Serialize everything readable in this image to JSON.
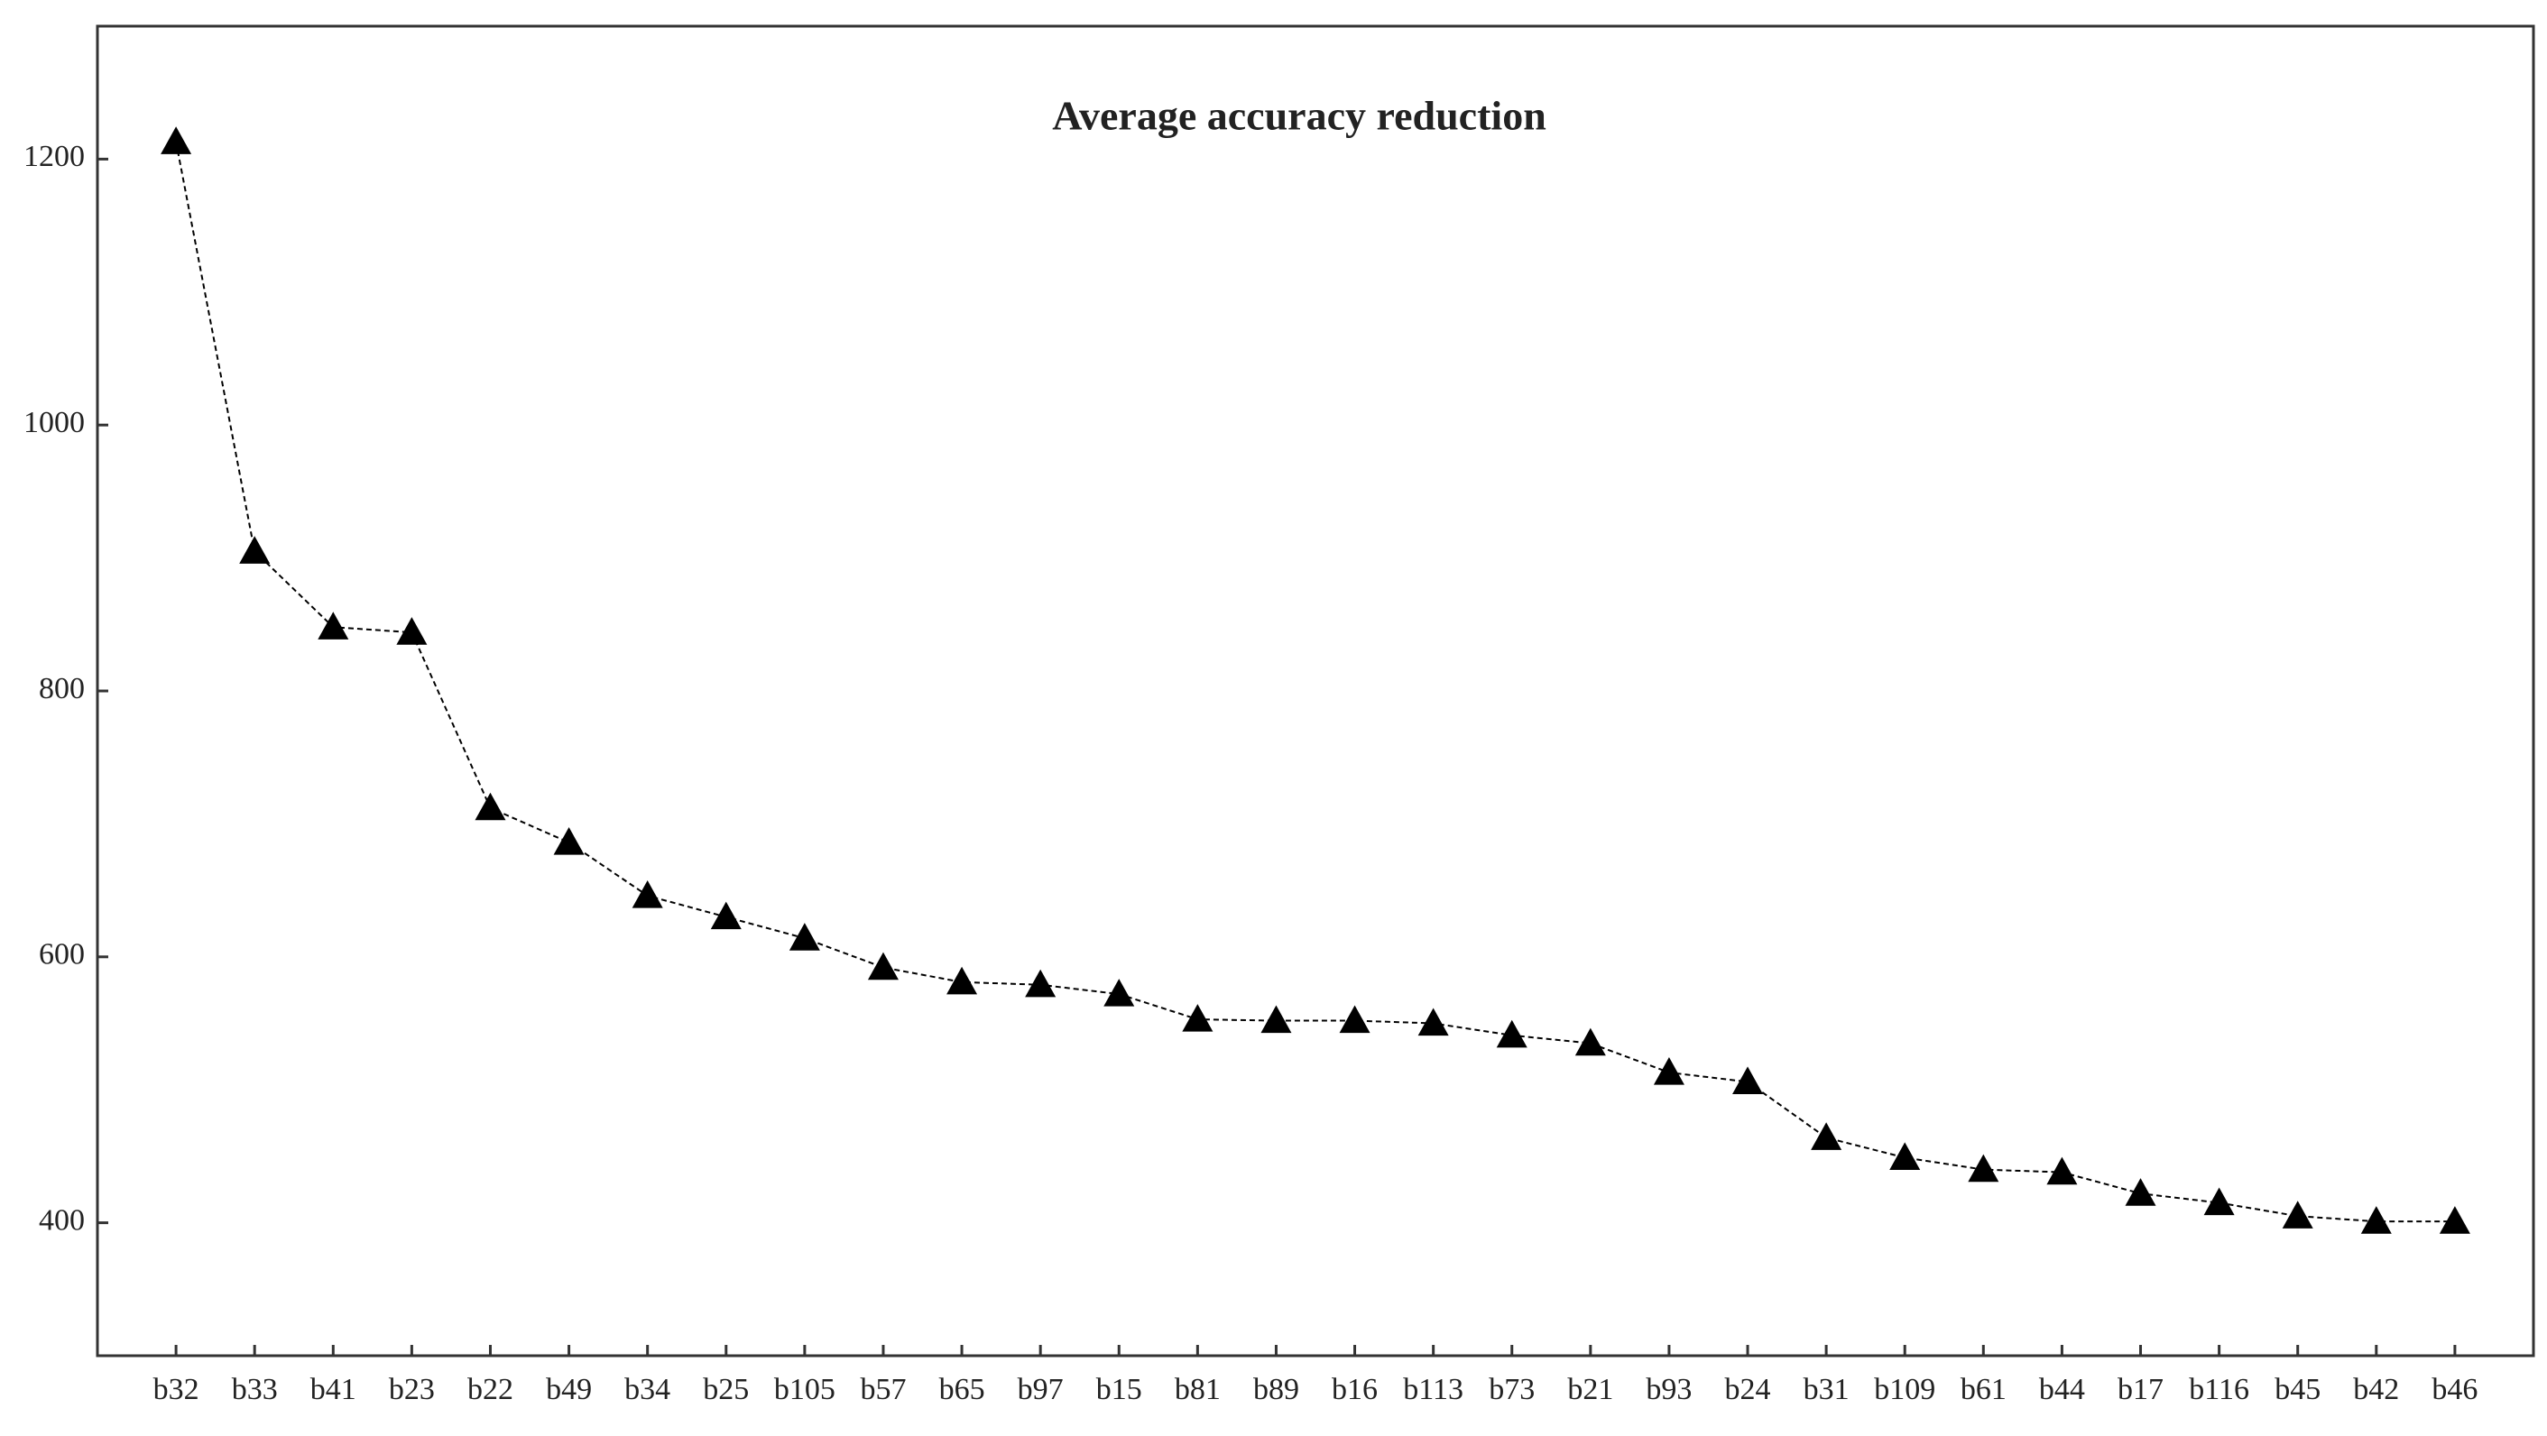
{
  "chart_data": {
    "type": "line",
    "title": "Average accuracy reduction",
    "categories": [
      "b32",
      "b33",
      "b41",
      "b23",
      "b22",
      "b49",
      "b34",
      "b25",
      "b105",
      "b57",
      "b65",
      "b97",
      "b15",
      "b81",
      "b89",
      "b16",
      "b113",
      "b73",
      "b21",
      "b93",
      "b24",
      "b31",
      "b109",
      "b61",
      "b44",
      "b17",
      "b116",
      "b45",
      "b42",
      "b46"
    ],
    "values": [
      1213,
      905,
      848,
      844,
      712,
      686,
      646,
      630,
      614,
      592,
      581,
      579,
      572,
      553,
      552,
      552,
      550,
      541,
      535,
      513,
      506,
      464,
      449,
      440,
      438,
      422,
      415,
      405,
      401,
      401
    ],
    "color": "#000000",
    "ylim": [
      300,
      1300
    ],
    "yticks": [
      400,
      600,
      800,
      1000,
      1200
    ],
    "grid": false
  }
}
